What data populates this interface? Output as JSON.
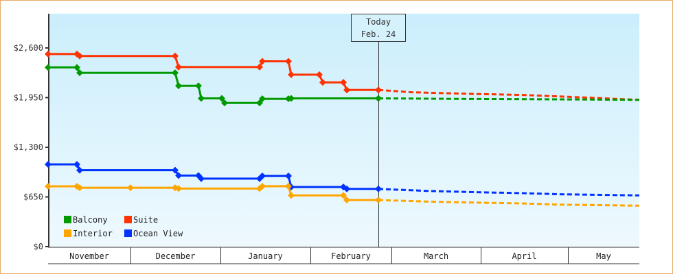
{
  "chart_data": {
    "type": "line",
    "title": "",
    "xlabel": "",
    "ylabel": "",
    "ylim": [
      0,
      3250
    ],
    "y_ticks": [
      {
        "value": 0,
        "label": "$0"
      },
      {
        "value": 650,
        "label": "$650"
      },
      {
        "value": 1300,
        "label": "$1,300"
      },
      {
        "value": 1950,
        "label": "$1,950"
      },
      {
        "value": 2600,
        "label": "$2,600"
      }
    ],
    "x_months": [
      {
        "label": "November",
        "x0": 70,
        "x1": 190
      },
      {
        "label": "December",
        "x0": 190,
        "x1": 321
      },
      {
        "label": "January",
        "x0": 321,
        "x1": 452
      },
      {
        "label": "February",
        "x0": 452,
        "x1": 570
      },
      {
        "label": "March",
        "x0": 570,
        "x1": 700
      },
      {
        "label": "April",
        "x0": 700,
        "x1": 827
      },
      {
        "label": "May",
        "x0": 827,
        "x1": 931
      }
    ],
    "today_marker": {
      "line1": "Today",
      "line2": "Feb. 24",
      "x": 551
    },
    "legend": [
      {
        "name": "Balcony",
        "color": "#009900"
      },
      {
        "name": "Suite",
        "color": "#ff3300"
      },
      {
        "name": "Interior",
        "color": "#ffa500"
      },
      {
        "name": "Ocean View",
        "color": "#0033ff"
      }
    ],
    "series": [
      {
        "name": "Suite",
        "color": "#ff3300",
        "history": [
          [
            70,
            2520
          ],
          [
            112,
            2520
          ],
          [
            116,
            2495
          ],
          [
            255,
            2495
          ],
          [
            260,
            2350
          ],
          [
            378,
            2350
          ],
          [
            382,
            2425
          ],
          [
            420,
            2425
          ],
          [
            424,
            2250
          ],
          [
            465,
            2250
          ],
          [
            470,
            2150
          ],
          [
            500,
            2150
          ],
          [
            505,
            2050
          ],
          [
            551,
            2050
          ]
        ],
        "forecast": [
          [
            551,
            2050
          ],
          [
            600,
            2020
          ],
          [
            680,
            2000
          ],
          [
            760,
            1985
          ],
          [
            830,
            1960
          ],
          [
            931,
            1920
          ]
        ]
      },
      {
        "name": "Balcony",
        "color": "#009900",
        "history": [
          [
            70,
            2345
          ],
          [
            112,
            2345
          ],
          [
            116,
            2275
          ],
          [
            255,
            2275
          ],
          [
            260,
            2105
          ],
          [
            289,
            2105
          ],
          [
            293,
            1940
          ],
          [
            323,
            1940
          ],
          [
            327,
            1880
          ],
          [
            378,
            1880
          ],
          [
            382,
            1935
          ],
          [
            420,
            1935
          ],
          [
            424,
            1940
          ],
          [
            551,
            1940
          ]
        ],
        "forecast": [
          [
            551,
            1940
          ],
          [
            650,
            1935
          ],
          [
            760,
            1930
          ],
          [
            860,
            1925
          ],
          [
            931,
            1920
          ]
        ]
      },
      {
        "name": "Ocean View",
        "color": "#0033ff",
        "history": [
          [
            70,
            1076
          ],
          [
            112,
            1076
          ],
          [
            116,
            1000
          ],
          [
            255,
            1000
          ],
          [
            260,
            930
          ],
          [
            289,
            930
          ],
          [
            293,
            890
          ],
          [
            378,
            890
          ],
          [
            382,
            925
          ],
          [
            420,
            925
          ],
          [
            424,
            780
          ],
          [
            500,
            780
          ],
          [
            505,
            755
          ],
          [
            551,
            755
          ]
        ],
        "forecast": [
          [
            551,
            755
          ],
          [
            620,
            730
          ],
          [
            700,
            710
          ],
          [
            760,
            700
          ],
          [
            815,
            685
          ],
          [
            931,
            670
          ]
        ]
      },
      {
        "name": "Interior",
        "color": "#ffa500",
        "history": [
          [
            70,
            789
          ],
          [
            112,
            789
          ],
          [
            116,
            770
          ],
          [
            190,
            770
          ],
          [
            255,
            770
          ],
          [
            260,
            760
          ],
          [
            378,
            760
          ],
          [
            382,
            790
          ],
          [
            420,
            790
          ],
          [
            424,
            670
          ],
          [
            500,
            670
          ],
          [
            505,
            610
          ],
          [
            551,
            610
          ]
        ],
        "forecast": [
          [
            551,
            610
          ],
          [
            620,
            590
          ],
          [
            700,
            575
          ],
          [
            760,
            565
          ],
          [
            815,
            550
          ],
          [
            931,
            535
          ]
        ]
      }
    ]
  }
}
